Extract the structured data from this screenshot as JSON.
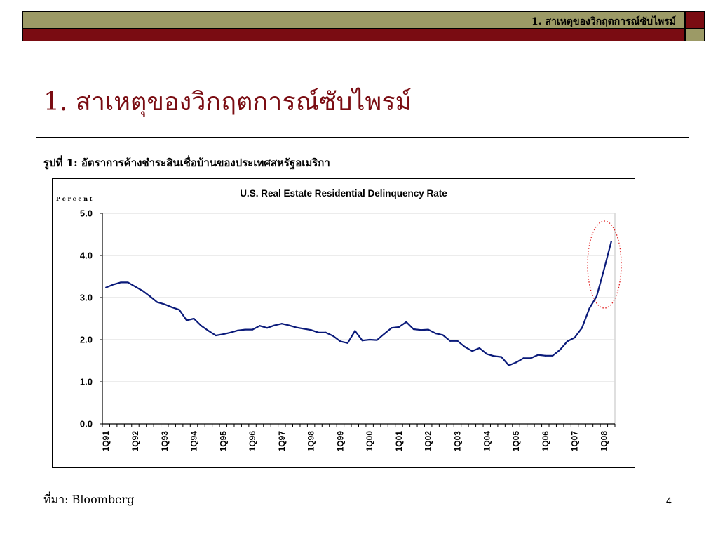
{
  "header": {
    "section_label": "1. สาเหตุของวิกฤตการณ์ซับไพรม์"
  },
  "slide": {
    "title": "1. สาเหตุของวิกฤตการณ์ซับไพรม์",
    "figure_caption": "รูปที่ 1: อัตราการค้างชำระสินเชื่อบ้านของประเทศสหรัฐอเมริกา",
    "source_note": "ที่มา: Bloomberg",
    "page_number": "4"
  },
  "colors": {
    "maroon": "#7a0c12",
    "olive": "#9c9a66",
    "series": "#0a1a7a",
    "highlight": "#e02020"
  },
  "chart_data": {
    "type": "line",
    "title": "U.S. Real Estate Residential Delinquency Rate",
    "ylabel": "P e r c e n t",
    "xlabel": "",
    "ylim": [
      0,
      5
    ],
    "yticks": [
      "0.0",
      "1.0",
      "2.0",
      "3.0",
      "4.0",
      "5.0"
    ],
    "grid": true,
    "legend": "none",
    "xtick_labels": [
      "1Q91",
      "1Q92",
      "1Q93",
      "1Q94",
      "1Q95",
      "1Q96",
      "1Q97",
      "1Q98",
      "1Q99",
      "1Q00",
      "1Q01",
      "1Q02",
      "1Q03",
      "1Q04",
      "1Q05",
      "1Q06",
      "1Q07",
      "1Q08"
    ],
    "series": [
      {
        "x_start": "1Q91",
        "frequency": "quarterly",
        "values": [
          3.24,
          3.31,
          3.36,
          3.36,
          3.26,
          3.16,
          3.03,
          2.89,
          2.84,
          2.77,
          2.71,
          2.46,
          2.5,
          2.33,
          2.21,
          2.1,
          2.13,
          2.17,
          2.22,
          2.24,
          2.24,
          2.33,
          2.28,
          2.34,
          2.38,
          2.34,
          2.29,
          2.26,
          2.23,
          2.17,
          2.17,
          2.09,
          1.96,
          1.92,
          2.21,
          1.98,
          2.0,
          1.99,
          2.14,
          2.28,
          2.3,
          2.42,
          2.25,
          2.23,
          2.24,
          2.15,
          2.11,
          1.97,
          1.97,
          1.83,
          1.73,
          1.8,
          1.66,
          1.61,
          1.59,
          1.39,
          1.46,
          1.56,
          1.56,
          1.64,
          1.62,
          1.62,
          1.76,
          1.96,
          2.05,
          2.28,
          2.74,
          3.03,
          3.66,
          4.33
        ]
      }
    ],
    "annotation": "highlight ellipse around latest values"
  }
}
